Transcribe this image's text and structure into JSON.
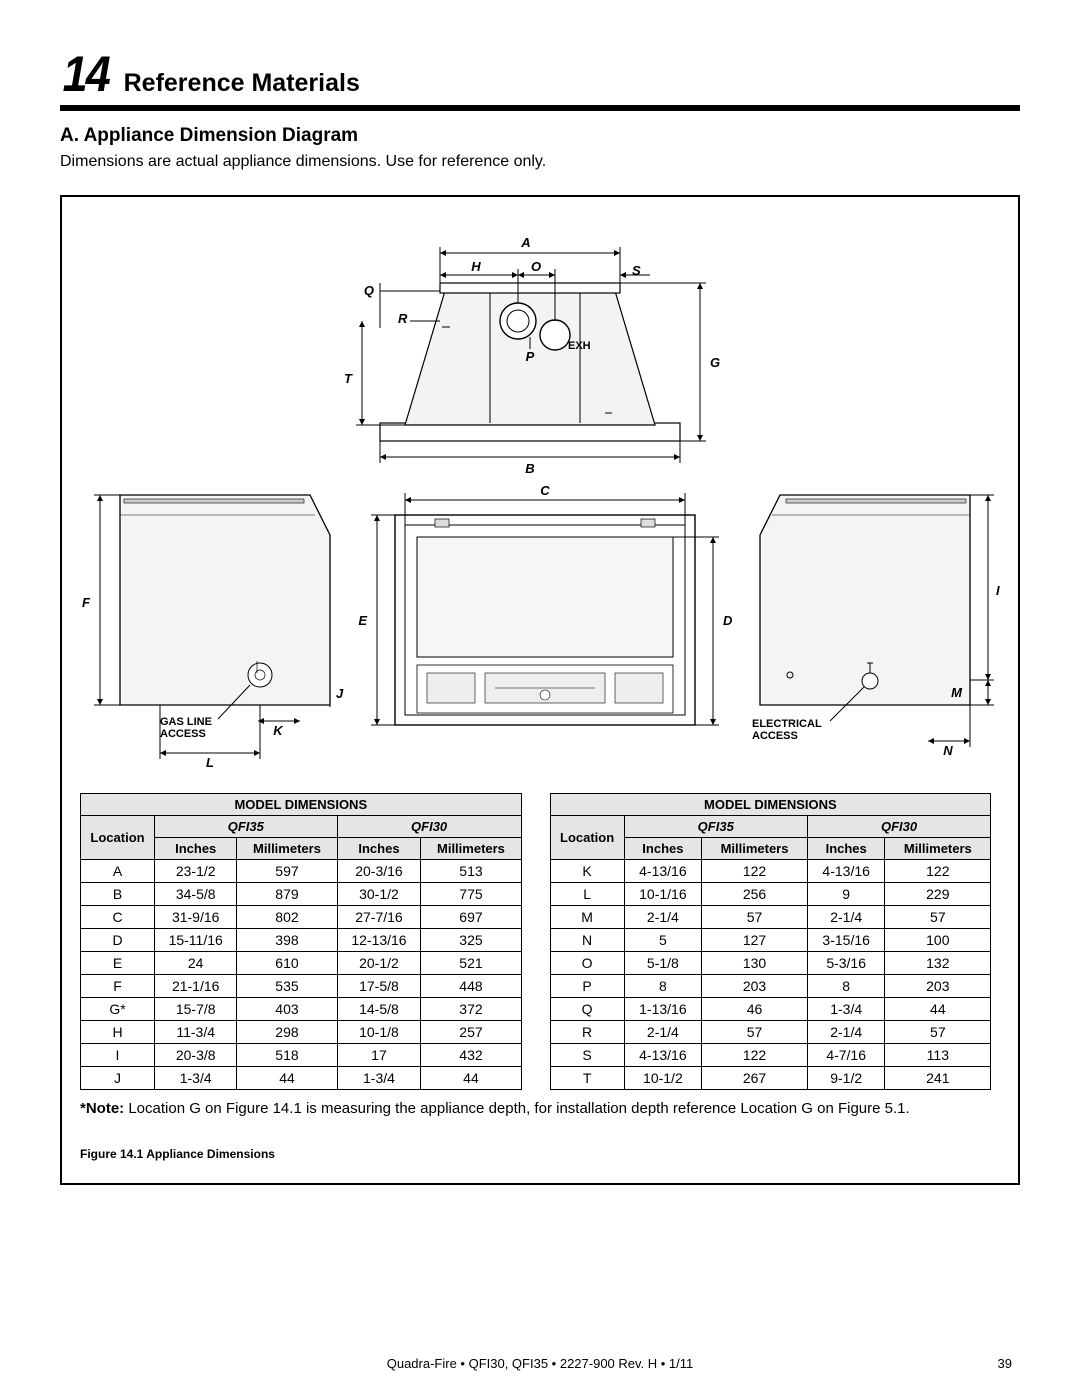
{
  "section": {
    "number": "14",
    "title": "Reference Materials"
  },
  "subhead": "A.  Appliance Dimension Diagram",
  "lead": "Dimensions are actual appliance dimensions. Use for reference only.",
  "diagram": {
    "top_labels": {
      "A": "A",
      "H": "H",
      "O": "O",
      "S": "S",
      "Q": "Q",
      "R": "R",
      "P": "P",
      "T": "T",
      "G": "G",
      "B": "B"
    },
    "mid_labels": {
      "C": "C",
      "D": "D",
      "E": "E",
      "F": "F",
      "I": "I",
      "J": "J",
      "K": "K",
      "L": "L",
      "M": "M",
      "N": "N"
    },
    "notes": {
      "gas": "GAS LINE ACCESS",
      "elec": "ELECTRICAL ACCESS"
    },
    "exh_text": "EXH"
  },
  "table_left": {
    "title": "MODEL DIMENSIONS",
    "models": [
      "QFI35",
      "QFI30"
    ],
    "col_units": [
      "Inches",
      "Millimeters",
      "Inches",
      "Millimeters"
    ],
    "loc_label": "Location",
    "rows": [
      [
        "A",
        "23-1/2",
        "597",
        "20-3/16",
        "513"
      ],
      [
        "B",
        "34-5/8",
        "879",
        "30-1/2",
        "775"
      ],
      [
        "C",
        "31-9/16",
        "802",
        "27-7/16",
        "697"
      ],
      [
        "D",
        "15-11/16",
        "398",
        "12-13/16",
        "325"
      ],
      [
        "E",
        "24",
        "610",
        "20-1/2",
        "521"
      ],
      [
        "F",
        "21-1/16",
        "535",
        "17-5/8",
        "448"
      ],
      [
        "G*",
        "15-7/8",
        "403",
        "14-5/8",
        "372"
      ],
      [
        "H",
        "11-3/4",
        "298",
        "10-1/8",
        "257"
      ],
      [
        "I",
        "20-3/8",
        "518",
        "17",
        "432"
      ],
      [
        "J",
        "1-3/4",
        "44",
        "1-3/4",
        "44"
      ]
    ]
  },
  "table_right": {
    "title": "MODEL DIMENSIONS",
    "models": [
      "QFI35",
      "QFI30"
    ],
    "col_units": [
      "Inches",
      "Millimeters",
      "Inches",
      "Millimeters"
    ],
    "loc_label": "Location",
    "rows": [
      [
        "K",
        "4-13/16",
        "122",
        "4-13/16",
        "122"
      ],
      [
        "L",
        "10-1/16",
        "256",
        "9",
        "229"
      ],
      [
        "M",
        "2-1/4",
        "57",
        "2-1/4",
        "57"
      ],
      [
        "N",
        "5",
        "127",
        "3-15/16",
        "100"
      ],
      [
        "O",
        "5-1/8",
        "130",
        "5-3/16",
        "132"
      ],
      [
        "P",
        "8",
        "203",
        "8",
        "203"
      ],
      [
        "Q",
        "1-13/16",
        "46",
        "1-3/4",
        "44"
      ],
      [
        "R",
        "2-1/4",
        "57",
        "2-1/4",
        "57"
      ],
      [
        "S",
        "4-13/16",
        "122",
        "4-7/16",
        "113"
      ],
      [
        "T",
        "10-1/2",
        "267",
        "9-1/2",
        "241"
      ]
    ]
  },
  "note": "*Note:  Location G on Figure 14.1 is measuring the appliance depth, for installation depth reference Location G on Figure 5.1.",
  "fig_cap": "Figure 14.1  Appliance Dimensions",
  "footer": {
    "center": "Quadra-Fire  •  QFI30, QFI35  •  2227-900 Rev. H  •  1/11",
    "page": "39"
  }
}
